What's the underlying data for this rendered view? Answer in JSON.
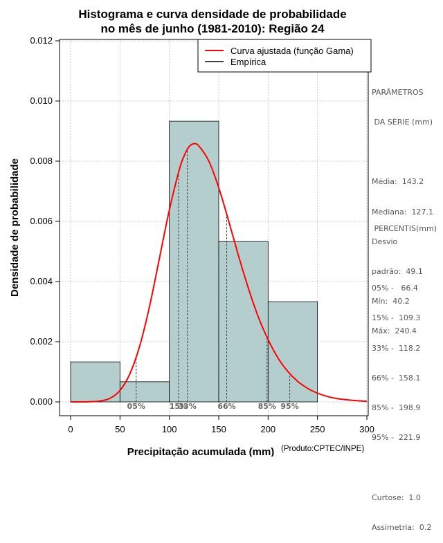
{
  "chart_data": {
    "type": "bar",
    "title": "Histograma e curva densidade de probabilidade",
    "subtitle": "no mês de junho (1981-2010): Região 24",
    "xlabel": "Precipitação acumulada (mm)",
    "ylabel": "Densidade de probabilidade",
    "credit": "(Produto:CPTEC/INPE)",
    "xlim": [
      -10,
      300
    ],
    "ylim": [
      -0.0005,
      0.012
    ],
    "xticks": [
      0,
      50,
      100,
      150,
      200,
      250,
      300
    ],
    "yticks": [
      "0.000",
      "0.002",
      "0.004",
      "0.006",
      "0.008",
      "0.010",
      "0.012"
    ],
    "grid": true,
    "legend_position": "top-right",
    "bins": [
      {
        "from": 0,
        "to": 50,
        "density": 0.00133
      },
      {
        "from": 50,
        "to": 100,
        "density": 0.00067
      },
      {
        "from": 100,
        "to": 150,
        "density": 0.00933
      },
      {
        "from": 150,
        "to": 200,
        "density": 0.00533
      },
      {
        "from": 200,
        "to": 250,
        "density": 0.00333
      }
    ],
    "series": [
      {
        "name": "Curva ajustada (função Gama)",
        "color": "#ff0000",
        "type": "line",
        "x": [
          0,
          10,
          20,
          30,
          40,
          50,
          60,
          70,
          80,
          90,
          100,
          110,
          115,
          120,
          125,
          130,
          140,
          150,
          160,
          170,
          180,
          190,
          200,
          210,
          220,
          230,
          240,
          250,
          260,
          270,
          280,
          290,
          300
        ],
        "y": [
          0,
          3e-07,
          5e-06,
          3e-05,
          0.00012,
          0.00038,
          0.00093,
          0.00186,
          0.00318,
          0.00478,
          0.00638,
          0.00771,
          0.00818,
          0.00848,
          0.00858,
          0.0085,
          0.008,
          0.00712,
          0.00602,
          0.00486,
          0.00378,
          0.00283,
          0.00207,
          0.00146,
          0.00101,
          0.00068,
          0.00045,
          0.00029,
          0.00018,
          0.00011,
          7e-05,
          4e-05,
          2e-05
        ]
      },
      {
        "name": "Empírica",
        "color": "#000000",
        "type": "step"
      }
    ],
    "percentile_lines": [
      {
        "label": "05%",
        "x": 66.4
      },
      {
        "label": "15%",
        "x": 109.3
      },
      {
        "label": "33%",
        "x": 118.2
      },
      {
        "label": "66%",
        "x": 158.1
      },
      {
        "label": "85%",
        "x": 198.9
      },
      {
        "label": "95%",
        "x": 221.9
      }
    ],
    "percentile_marker_labels": [
      "05%",
      "15%",
      "33%",
      "66%",
      "85%",
      "95%"
    ],
    "colors": {
      "bar_fill": "#b4cecd",
      "curve": "#ff0000",
      "grid": "#bbbbbb",
      "stats_text": "#555555"
    }
  },
  "stats_panel": {
    "parametros": {
      "heading1": "PARÂMETROS",
      "heading2": " DA SÉRIE (mm)",
      "media": "Média:  143.2",
      "mediana": "Mediana:  127.1",
      "desvio": "Desvio",
      "padrao": "padrão:  49.1",
      "min": "Mín:  40.2",
      "max": "Máx:  240.4"
    },
    "percentis": {
      "heading": " PERCENTIS(mm)",
      "p05": "05% -   66.4",
      "p15": "15% -  109.3",
      "p33": "33% -  118.2",
      "p66": "66% -  158.1",
      "p85": "85% -  198.9",
      "p95": "95% -  221.9",
      "curtose": "Curtose:  1.0",
      "assimetria": "Assimetria:  0.2"
    }
  }
}
